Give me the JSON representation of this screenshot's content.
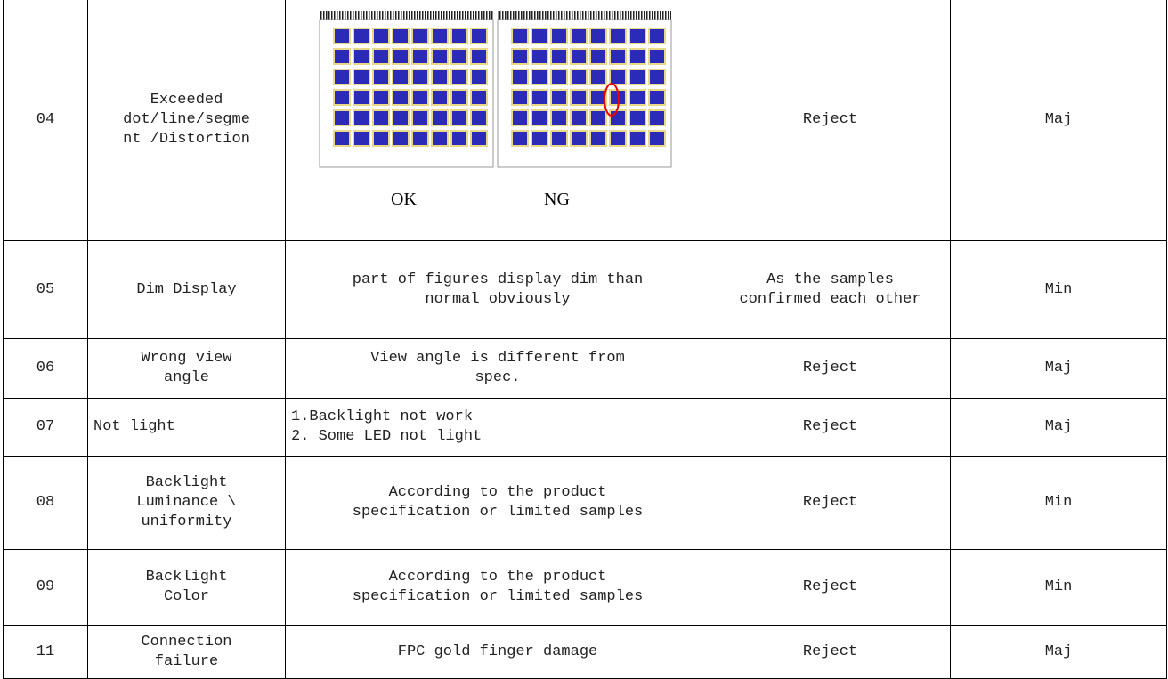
{
  "table": {
    "rows": [
      {
        "no": "04",
        "item": [
          "Exceeded",
          "dot/line/segme",
          "nt /Distortion"
        ],
        "image_captions": [
          "OK",
          "NG"
        ],
        "judgement": [
          "Reject"
        ],
        "class": "Maj"
      },
      {
        "no": "05",
        "item": [
          "Dim Display"
        ],
        "criteria": [
          "part of figures display dim than",
          "normal obviously"
        ],
        "judgement": [
          "As the samples",
          "confirmed each other"
        ],
        "class": "Min"
      },
      {
        "no": "06",
        "item": [
          "Wrong view",
          "angle"
        ],
        "criteria": [
          "View angle is different from",
          "spec."
        ],
        "judgement": [
          "Reject"
        ],
        "class": "Maj"
      },
      {
        "no": "07",
        "item": [
          "Not light"
        ],
        "criteria": [
          "1.Backlight not work",
          "2. Some LED not light"
        ],
        "judgement": [
          "Reject"
        ],
        "class": "Maj"
      },
      {
        "no": "08",
        "item": [
          "Backlight",
          "Luminance \\",
          "uniformity"
        ],
        "criteria": [
          "According to the product",
          "specification or limited samples"
        ],
        "judgement": [
          "Reject"
        ],
        "class": "Min"
      },
      {
        "no": "09",
        "item": [
          "Backlight",
          "Color"
        ],
        "criteria": [
          "According to the product",
          "specification or limited samples"
        ],
        "judgement": [
          "Reject"
        ],
        "class": "Min"
      },
      {
        "no": "11",
        "item": [
          "Connection",
          "failure"
        ],
        "criteria": [
          "FPC gold finger damage"
        ],
        "judgement": [
          "Reject"
        ],
        "class": "Maj"
      }
    ]
  }
}
